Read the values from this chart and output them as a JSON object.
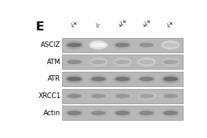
{
  "panel_label": "E",
  "row_labels": [
    "ASCIZ",
    "ATM",
    "ATR",
    "XRCC1",
    "Actin"
  ],
  "col_labels": [
    "-/+",
    "-/-",
    "+/+",
    "+/+",
    "-/+"
  ],
  "n_cols": 5,
  "n_rows": 5,
  "panel_label_fontsize": 13,
  "row_label_fontsize": 7,
  "col_label_fontsize": 5.5,
  "band_patterns": {
    "ASCIZ": [
      0.65,
      0.05,
      0.58,
      0.5,
      0.28
    ],
    "ATM": [
      0.52,
      0.38,
      0.38,
      0.33,
      0.42
    ],
    "ATR": [
      0.68,
      0.62,
      0.63,
      0.58,
      0.68
    ],
    "XRCC1": [
      0.52,
      0.48,
      0.48,
      0.43,
      0.48
    ],
    "Actin": [
      0.58,
      0.53,
      0.58,
      0.56,
      0.58
    ]
  }
}
